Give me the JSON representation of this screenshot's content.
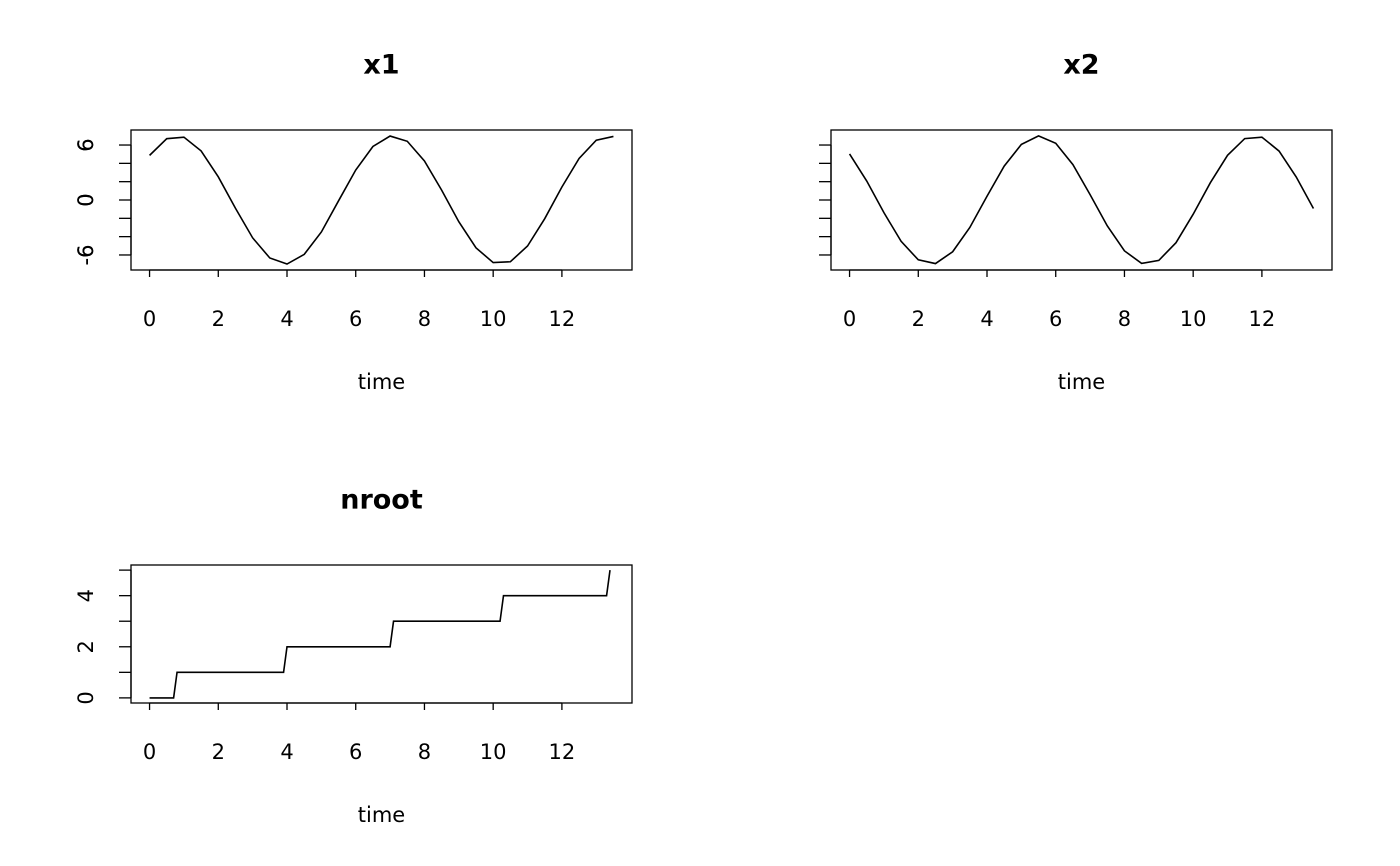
{
  "chart_data": [
    {
      "type": "line",
      "title": "x1",
      "xlabel": "time",
      "color": "#000000",
      "x": [
        0,
        0.5,
        1,
        1.5,
        2,
        2.5,
        3,
        3.5,
        4,
        4.5,
        5,
        5.5,
        6,
        6.5,
        7,
        7.5,
        8,
        8.5,
        9,
        9.5,
        10,
        10.5,
        11,
        11.5,
        12,
        12.5,
        13,
        13.5
      ],
      "values": [
        4.87,
        6.69,
        6.86,
        5.36,
        2.53,
        -0.9,
        -4.13,
        -6.33,
        -6.99,
        -5.94,
        -3.49,
        -0.09,
        3.27,
        5.84,
        6.98,
        6.41,
        4.26,
        1.08,
        -2.37,
        -5.22,
        -6.83,
        -6.74,
        -5.02,
        -2.04,
        1.42,
        4.53,
        6.53,
        6.94
      ],
      "xlim": [
        -0.54,
        14.04
      ],
      "ylim": [
        -7.64,
        7.64
      ],
      "xticks": [
        0,
        2,
        4,
        6,
        8,
        10,
        12
      ],
      "yticks": [
        -6,
        0,
        6
      ],
      "yminorticks": [
        -4,
        -2,
        2,
        4
      ]
    },
    {
      "type": "line",
      "title": "x2",
      "xlabel": "time",
      "color": "#000000",
      "x": [
        0,
        0.5,
        1,
        1.5,
        2,
        2.5,
        3,
        3.5,
        4,
        4.5,
        5,
        5.5,
        6,
        6.5,
        7,
        7.5,
        8,
        8.5,
        9,
        9.5,
        10,
        10.5,
        11,
        11.5,
        12,
        12.5,
        13,
        13.5
      ],
      "values": [
        5.03,
        2.07,
        -1.38,
        -4.51,
        -6.53,
        -6.94,
        -5.65,
        -3.0,
        0.41,
        3.7,
        6.07,
        7.0,
        6.19,
        3.86,
        0.59,
        -2.82,
        -5.55,
        -6.92,
        -6.59,
        -4.66,
        -1.55,
        1.89,
        4.88,
        6.7,
        6.86,
        5.34,
        2.51,
        -0.93
      ],
      "xlim": [
        -0.54,
        14.04
      ],
      "ylim": [
        -7.64,
        7.64
      ],
      "xticks": [
        0,
        2,
        4,
        6,
        8,
        10,
        12
      ],
      "yticks": [
        -6,
        0,
        6
      ],
      "yminorticks": [
        -4,
        -2,
        2,
        4
      ]
    },
    {
      "type": "line",
      "title": "nroot",
      "xlabel": "time",
      "color": "#000000",
      "x": [
        0,
        0.7,
        0.8,
        3.9,
        4.0,
        7.0,
        7.1,
        10.2,
        10.3,
        13.3,
        13.4
      ],
      "values": [
        0,
        0,
        1,
        1,
        2,
        2,
        3,
        3,
        4,
        4,
        5
      ],
      "xlim": [
        -0.54,
        14.04
      ],
      "ylim": [
        -0.2,
        5.2
      ],
      "xticks": [
        0,
        2,
        4,
        6,
        8,
        10,
        12
      ],
      "yticks": [
        0,
        2,
        4
      ],
      "yminorticks": [
        1,
        3,
        5
      ]
    }
  ]
}
